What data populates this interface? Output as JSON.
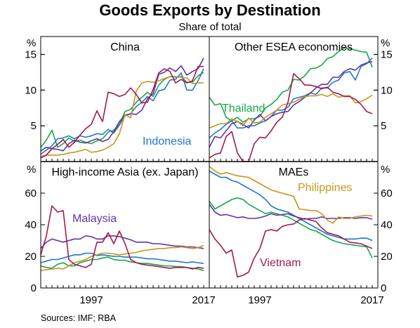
{
  "header": {
    "title": "Goods Exports by Destination",
    "subtitle": "Share of total"
  },
  "footer": {
    "source": "Sources:   IMF; RBA"
  },
  "chart_data": [
    {
      "type": "line",
      "panel_title": "China",
      "unit": "%",
      "ylim": [
        0,
        17.5
      ],
      "yticks": [
        5,
        10,
        15
      ],
      "xlim": [
        1988,
        2018
      ],
      "x": [
        1988,
        1989,
        1990,
        1991,
        1992,
        1993,
        1994,
        1995,
        1996,
        1997,
        1998,
        1999,
        2000,
        2001,
        2002,
        2003,
        2004,
        2005,
        2006,
        2007,
        2008,
        2009,
        2010,
        2011,
        2012,
        2013,
        2014,
        2015,
        2016,
        2017
      ],
      "annotations": [
        "Indonesia"
      ],
      "series": [
        {
          "name": "Thailand",
          "color": "#19a64b",
          "values": [
            2.0,
            3.0,
            4.4,
            2.0,
            2.5,
            3.3,
            2.8,
            3.0,
            2.7,
            2.5,
            2.9,
            3.2,
            4.1,
            4.4,
            5.2,
            7.0,
            7.3,
            8.3,
            9.0,
            9.7,
            9.1,
            10.7,
            11.5,
            11.9,
            11.8,
            11.9,
            11.1,
            11.1,
            12.0,
            12.5
          ]
        },
        {
          "name": "Indonesia",
          "color": "#2277c9",
          "values": [
            1.0,
            1.6,
            2.2,
            3.2,
            3.3,
            3.6,
            3.2,
            3.6,
            3.4,
            3.6,
            3.9,
            3.8,
            4.5,
            4.0,
            5.1,
            6.4,
            6.7,
            7.7,
            8.3,
            9.1,
            8.5,
            9.9,
            10.1,
            11.4,
            11.5,
            12.4,
            10.0,
            10.0,
            11.3,
            13.0
          ]
        },
        {
          "name": "Malaysia",
          "color": "#5f35a6",
          "values": [
            1.5,
            2.0,
            1.8,
            1.7,
            1.5,
            2.5,
            3.0,
            2.7,
            2.6,
            2.9,
            3.2,
            2.8,
            3.1,
            4.2,
            5.6,
            6.5,
            6.7,
            6.6,
            7.2,
            8.8,
            9.5,
            12.2,
            12.5,
            13.1,
            12.6,
            13.4,
            12.1,
            12.6,
            13.0,
            14.5
          ]
        },
        {
          "name": "Philippines",
          "color": "#c8961c",
          "values": [
            0.7,
            0.9,
            0.9,
            0.9,
            1.0,
            1.2,
            1.3,
            1.5,
            1.7,
            1.3,
            1.4,
            1.6,
            2.0,
            2.5,
            3.9,
            6.6,
            6.1,
            9.9,
            11.0,
            11.2,
            11.1,
            11.3,
            11.6,
            11.9,
            11.9,
            11.8,
            11.7,
            10.9,
            11.0,
            11.0
          ]
        },
        {
          "name": "Vietnam",
          "color": "#a31953",
          "values": [
            0.5,
            0.9,
            1.8,
            2.4,
            3.1,
            2.0,
            2.7,
            3.7,
            4.6,
            5.2,
            7.1,
            5.6,
            9.7,
            9.5,
            9.1,
            9.4,
            10.3,
            9.4,
            8.2,
            8.3,
            10.1,
            12.4,
            13.0,
            12.6,
            11.0,
            11.5,
            11.0,
            11.3,
            13.3,
            13.3
          ]
        }
      ]
    },
    {
      "type": "line",
      "panel_title": "Other ESEA economies",
      "unit": "%",
      "ylim": [
        0,
        17.5
      ],
      "yticks": [
        5,
        10,
        15
      ],
      "xlim": [
        1988,
        2018
      ],
      "x": [
        1988,
        1989,
        1990,
        1991,
        1992,
        1993,
        1994,
        1995,
        1996,
        1997,
        1998,
        1999,
        2000,
        2001,
        2002,
        2003,
        2004,
        2005,
        2006,
        2007,
        2008,
        2009,
        2010,
        2011,
        2012,
        2013,
        2014,
        2015,
        2016,
        2017
      ],
      "annotations": [
        "Thailand"
      ],
      "series": [
        {
          "name": "Thailand",
          "color": "#19a64b",
          "values": [
            9.0,
            7.9,
            8.1,
            6.2,
            5.7,
            6.2,
            5.5,
            6.0,
            6.0,
            6.3,
            7.5,
            8.0,
            8.7,
            9.7,
            10.0,
            11.5,
            11.4,
            12.0,
            13.0,
            13.1,
            13.5,
            14.4,
            14.7,
            15.4,
            15.9,
            15.8,
            15.6,
            15.4,
            15.3,
            13.2
          ]
        },
        {
          "name": "Indonesia",
          "color": "#2277c9",
          "values": [
            3.3,
            4.0,
            4.5,
            5.2,
            5.7,
            4.7,
            4.7,
            5.0,
            5.0,
            5.4,
            5.7,
            6.3,
            7.2,
            7.2,
            7.6,
            8.8,
            9.0,
            9.2,
            9.6,
            9.4,
            10.3,
            10.3,
            11.1,
            11.4,
            12.4,
            12.6,
            11.4,
            13.3,
            13.7,
            14.5
          ]
        },
        {
          "name": "Malaysia",
          "color": "#5f35a6",
          "values": [
            2.0,
            3.5,
            3.3,
            4.3,
            5.3,
            5.6,
            5.2,
            4.7,
            5.8,
            6.6,
            5.7,
            6.3,
            6.7,
            6.9,
            7.0,
            7.9,
            8.4,
            9.0,
            9.6,
            10.3,
            10.8,
            10.8,
            11.8,
            11.8,
            12.6,
            13.0,
            12.8,
            13.5,
            13.8,
            14.0
          ]
        },
        {
          "name": "Philippines",
          "color": "#c8961c",
          "values": [
            4.7,
            5.0,
            5.3,
            5.3,
            6.0,
            5.6,
            5.0,
            6.1,
            5.4,
            5.5,
            6.2,
            6.7,
            7.2,
            7.9,
            8.1,
            8.3,
            8.7,
            9.1,
            9.2,
            9.2,
            9.4,
            9.1,
            9.5,
            9.0,
            9.2,
            9.2,
            8.2,
            8.4,
            8.8,
            9.3
          ]
        },
        {
          "name": "Vietnam",
          "color": "#a31953",
          "values": [
            0.5,
            1.0,
            1.2,
            3.5,
            4.2,
            1.2,
            0.0,
            0.0,
            2.5,
            3.4,
            3.3,
            4.3,
            5.5,
            6.2,
            8.3,
            12.3,
            11.6,
            10.7,
            10.7,
            10.5,
            10.2,
            10.4,
            9.7,
            9.5,
            9.1,
            9.1,
            8.7,
            8.0,
            7.0,
            6.7
          ]
        }
      ]
    },
    {
      "type": "line",
      "panel_title": "High-income Asia (ex. Japan)",
      "unit": "%",
      "ylim": [
        0,
        80
      ],
      "yticks": [
        0,
        20,
        40,
        60
      ],
      "xlim": [
        1988,
        2018
      ],
      "xticks": [
        1997,
        2017
      ],
      "x": [
        1988,
        1989,
        1990,
        1991,
        1992,
        1993,
        1994,
        1995,
        1996,
        1997,
        1998,
        1999,
        2000,
        2001,
        2002,
        2003,
        2004,
        2005,
        2006,
        2007,
        2008,
        2009,
        2010,
        2011,
        2012,
        2013,
        2014,
        2015,
        2016,
        2017
      ],
      "annotations": [
        "Malaysia"
      ],
      "series": [
        {
          "name": "Thailand",
          "color": "#19a64b",
          "values": [
            14.0,
            13.0,
            12.5,
            15.0,
            16.0,
            14.0,
            14.0,
            16.0,
            17.0,
            18.0,
            18.0,
            19.0,
            19.5,
            18.0,
            17.5,
            17.5,
            16.5,
            16.0,
            15.5,
            15.5,
            15.0,
            14.5,
            14.0,
            14.0,
            13.5,
            13.5,
            13.0,
            12.5,
            12.0,
            11.0
          ]
        },
        {
          "name": "Indonesia",
          "color": "#2277c9",
          "values": [
            16.0,
            17.0,
            18.0,
            18.0,
            19.0,
            20.0,
            21.0,
            21.0,
            22.0,
            22.0,
            20.5,
            21.0,
            20.5,
            20.0,
            20.0,
            19.5,
            19.5,
            19.5,
            19.0,
            18.5,
            18.5,
            18.0,
            17.5,
            17.0,
            17.0,
            16.5,
            16.0,
            16.5,
            16.0,
            15.5
          ]
        },
        {
          "name": "Malaysia",
          "color": "#5f35a6",
          "values": [
            25.0,
            29.0,
            31.0,
            30.0,
            29.0,
            30.0,
            31.0,
            31.0,
            33.0,
            32.5,
            31.0,
            31.0,
            33.0,
            33.0,
            32.5,
            31.5,
            30.5,
            29.0,
            29.0,
            29.0,
            28.0,
            28.0,
            27.5,
            27.0,
            26.5,
            26.5,
            26.0,
            26.0,
            25.5,
            25.0
          ]
        },
        {
          "name": "Philippines",
          "color": "#c8961c",
          "values": [
            11.0,
            11.5,
            12.0,
            12.5,
            12.0,
            14.0,
            16.0,
            17.0,
            18.0,
            20.0,
            21.0,
            22.0,
            22.0,
            21.5,
            21.0,
            21.5,
            22.0,
            22.5,
            23.5,
            24.0,
            24.5,
            25.0,
            25.0,
            25.5,
            25.5,
            26.0,
            25.5,
            25.0,
            25.5,
            27.0
          ]
        },
        {
          "name": "Vietnam",
          "color": "#a31953",
          "values": [
            21.0,
            33.0,
            52.0,
            48.0,
            49.0,
            18.0,
            15.0,
            14.0,
            13.0,
            15.0,
            29.0,
            29.0,
            35.0,
            28.0,
            36.0,
            28.0,
            18.0,
            16.0,
            15.0,
            14.5,
            14.0,
            13.5,
            13.0,
            12.5,
            13.0,
            13.0,
            13.0,
            12.0,
            13.0,
            12.5
          ]
        }
      ]
    },
    {
      "type": "line",
      "panel_title": "MAEs",
      "unit": "%",
      "ylim": [
        0,
        80
      ],
      "yticks": [
        0,
        20,
        40,
        60
      ],
      "xlim": [
        1988,
        2018
      ],
      "xticks": [
        1997,
        2017
      ],
      "x": [
        1988,
        1989,
        1990,
        1991,
        1992,
        1993,
        1994,
        1995,
        1996,
        1997,
        1998,
        1999,
        2000,
        2001,
        2002,
        2003,
        2004,
        2005,
        2006,
        2007,
        2008,
        2009,
        2010,
        2011,
        2012,
        2013,
        2014,
        2015,
        2016,
        2017
      ],
      "annotations": [
        "Philippines",
        "Vietnam"
      ],
      "series": [
        {
          "name": "Thailand",
          "color": "#19a64b",
          "values": [
            55.0,
            50.0,
            52.0,
            54.0,
            56.0,
            57.0,
            56.0,
            53.0,
            51.0,
            49.0,
            47.0,
            48.0,
            47.0,
            46.0,
            45.0,
            43.0,
            41.0,
            39.0,
            37.0,
            36.0,
            34.0,
            32.0,
            30.0,
            29.0,
            28.0,
            27.5,
            27.0,
            26.5,
            26.0,
            19.0
          ]
        },
        {
          "name": "Indonesia",
          "color": "#2277c9",
          "values": [
            74.0,
            72.0,
            70.0,
            70.0,
            68.0,
            67.0,
            65.0,
            63.0,
            61.0,
            59.0,
            56.0,
            52.0,
            50.0,
            49.0,
            48.0,
            46.0,
            44.0,
            42.0,
            40.0,
            38.0,
            36.0,
            34.0,
            33.0,
            32.0,
            31.0,
            31.0,
            31.0,
            31.5,
            31.5,
            30.0
          ]
        },
        {
          "name": "Malaysia",
          "color": "#5f35a6",
          "values": [
            53.0,
            48.0,
            46.0,
            46.5,
            45.5,
            44.5,
            45.0,
            44.0,
            44.0,
            44.5,
            45.5,
            47.0,
            46.0,
            46.5,
            47.0,
            45.5,
            44.5,
            43.5,
            44.0,
            44.0,
            45.0,
            44.0,
            44.0,
            44.0,
            44.5,
            44.5,
            44.0,
            44.5,
            44.5,
            43.5
          ]
        },
        {
          "name": "Philippines",
          "color": "#c8961c",
          "values": [
            77.0,
            74.0,
            72.0,
            73.0,
            72.0,
            71.0,
            70.5,
            70.0,
            68.0,
            66.0,
            64.0,
            62.0,
            61.0,
            60.0,
            59.0,
            58.0,
            50.0,
            49.5,
            49.0,
            49.0,
            47.0,
            43.0,
            41.0,
            45.0,
            44.0,
            44.0,
            45.0,
            45.5,
            46.0,
            45.5
          ]
        },
        {
          "name": "Vietnam",
          "color": "#a31953",
          "values": [
            37.0,
            31.0,
            27.0,
            22.0,
            24.0,
            7.0,
            8.0,
            10.0,
            19.0,
            25.0,
            36.0,
            37.0,
            36.0,
            39.0,
            40.0,
            40.5,
            43.0,
            44.0,
            43.0,
            42.0,
            38.0,
            35.0,
            34.0,
            33.0,
            31.0,
            29.0,
            28.5,
            28.0,
            26.5,
            25.0
          ]
        }
      ]
    }
  ]
}
